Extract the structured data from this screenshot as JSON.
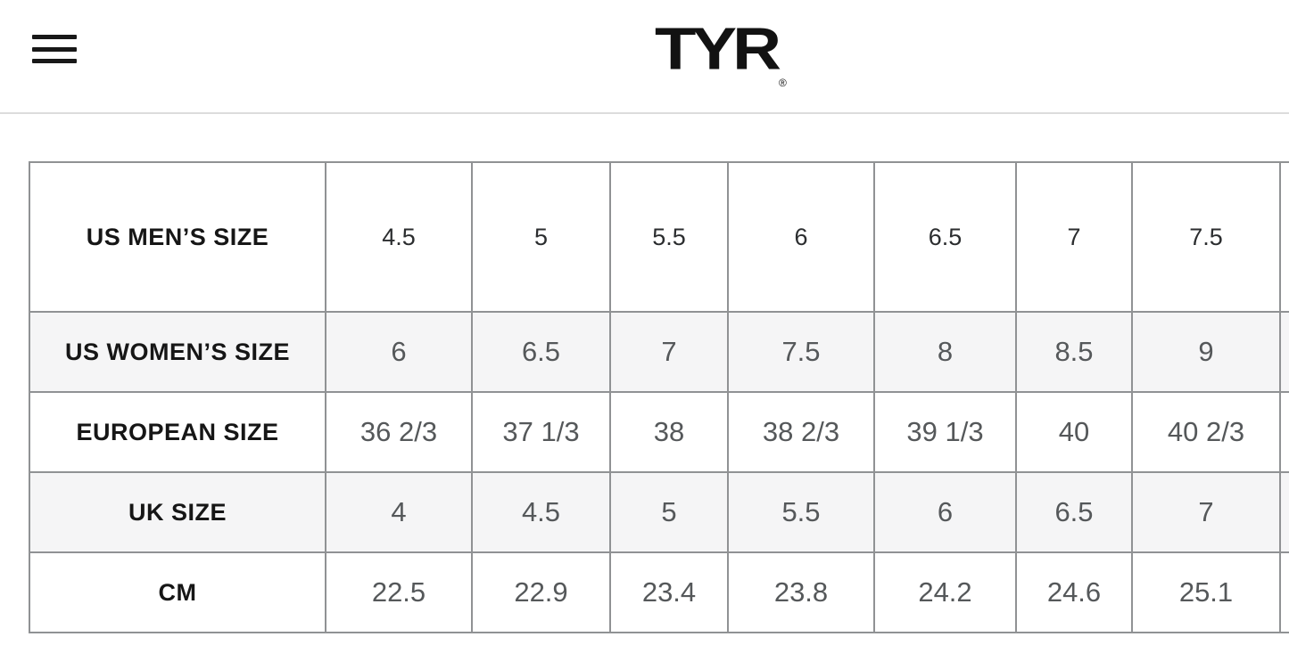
{
  "header": {
    "logo": {
      "text": "TYR",
      "registered": "®"
    }
  },
  "size_chart": {
    "rows": [
      {
        "label": "US MEN’S SIZE",
        "values": [
          "4.5",
          "5",
          "5.5",
          "6",
          "6.5",
          "7",
          "7.5"
        ],
        "shaded": false
      },
      {
        "label": "US WOMEN’S SIZE",
        "values": [
          "6",
          "6.5",
          "7",
          "7.5",
          "8",
          "8.5",
          "9"
        ],
        "shaded": true
      },
      {
        "label": "EUROPEAN SIZE",
        "values": [
          "36 2/3",
          "37 1/3",
          "38",
          "38 2/3",
          "39 1/3",
          "40",
          "40 2/3"
        ],
        "shaded": false
      },
      {
        "label": "UK SIZE",
        "values": [
          "4",
          "4.5",
          "5",
          "5.5",
          "6",
          "6.5",
          "7"
        ],
        "shaded": true
      },
      {
        "label": "CM",
        "values": [
          "22.5",
          "22.9",
          "23.4",
          "23.8",
          "24.2",
          "24.6",
          "25.1"
        ],
        "shaded": false
      }
    ]
  },
  "colors": {
    "accent_text": "#161616",
    "value_text": "#55585a",
    "value_text_dark": "#2b2d2f",
    "row_shade": "#f5f5f6",
    "table_border": "#909294",
    "header_divider": "#dcdcdc",
    "page_bg": "#ffffff"
  }
}
